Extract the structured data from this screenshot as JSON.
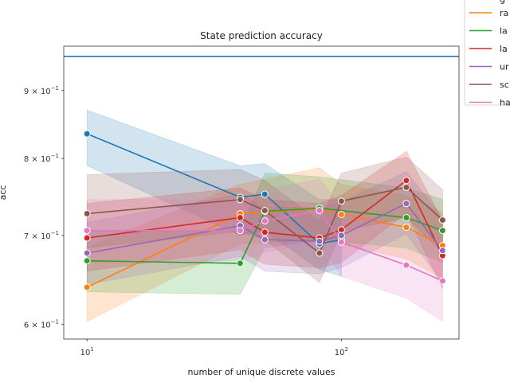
{
  "chart_data": {
    "type": "line",
    "title": "State prediction accuracy",
    "xlabel": "number of unique discrete values",
    "ylabel": "acc",
    "xscale": "log",
    "yscale": "log",
    "xlim": [
      8.1,
      290
    ],
    "ylim": [
      0.585,
      0.972
    ],
    "x_ticks": [
      {
        "value": 10,
        "base": "10",
        "exp": "1"
      },
      {
        "value": 100,
        "base": "10",
        "exp": "2"
      }
    ],
    "y_ticks": [
      {
        "value": 0.6,
        "mantissa": "6",
        "exp": "−1"
      },
      {
        "value": 0.7,
        "mantissa": "7",
        "exp": "−1"
      },
      {
        "value": 0.8,
        "mantissa": "8",
        "exp": "−1"
      },
      {
        "value": 0.9,
        "mantissa": "9",
        "exp": "−1"
      }
    ],
    "reference_line": {
      "y": 0.955,
      "color": "#1f77b4"
    },
    "grid": false,
    "legend_position": "right, partially cropped",
    "series": [
      {
        "name": "",
        "color": "#1f77b4",
        "x": [
          10,
          40,
          50,
          82,
          100
        ],
        "y": [
          0.835,
          0.748,
          0.752,
          0.69,
          0.695
        ],
        "lower": [
          0.79,
          0.7,
          0.705,
          0.66,
          0.652
        ],
        "upper": [
          0.87,
          0.79,
          0.793,
          0.745,
          0.745
        ]
      },
      {
        "name": "ra",
        "color": "#ff7f0e",
        "x": [
          10,
          40,
          82,
          100,
          180,
          250
        ],
        "y": [
          0.64,
          0.727,
          0.733,
          0.726,
          0.71,
          0.688
        ],
        "lower": [
          0.603,
          0.69,
          0.695,
          0.69,
          0.672,
          0.65
        ],
        "upper": [
          0.685,
          0.765,
          0.787,
          0.765,
          0.75,
          0.728
        ]
      },
      {
        "name": "la",
        "color": "#2ca02c",
        "x": [
          10,
          40,
          50,
          82,
          180,
          250
        ],
        "y": [
          0.67,
          0.667,
          0.73,
          0.734,
          0.722,
          0.706
        ],
        "lower": [
          0.635,
          0.632,
          0.685,
          0.695,
          0.685,
          0.668
        ],
        "upper": [
          0.705,
          0.705,
          0.78,
          0.775,
          0.76,
          0.745
        ]
      },
      {
        "name": "la",
        "color": "#d62728",
        "x": [
          10,
          40,
          50,
          82,
          100,
          180,
          250
        ],
        "y": [
          0.697,
          0.722,
          0.704,
          0.697,
          0.707,
          0.77,
          0.676
        ],
        "lower": [
          0.658,
          0.683,
          0.666,
          0.662,
          0.668,
          0.728,
          0.638
        ],
        "upper": [
          0.74,
          0.76,
          0.745,
          0.74,
          0.75,
          0.81,
          0.718
        ]
      },
      {
        "name": "ur",
        "color": "#9467bd",
        "x": [
          10,
          40,
          50,
          82,
          100,
          180,
          250
        ],
        "y": [
          0.679,
          0.712,
          0.695,
          0.693,
          0.7,
          0.74,
          0.682
        ],
        "lower": [
          0.643,
          0.675,
          0.658,
          0.655,
          0.662,
          0.702,
          0.645
        ],
        "upper": [
          0.716,
          0.752,
          0.735,
          0.735,
          0.742,
          0.782,
          0.722
        ]
      },
      {
        "name": "sc",
        "color": "#8c564b",
        "x": [
          10,
          40,
          50,
          82,
          100,
          180,
          250
        ],
        "y": [
          0.727,
          0.745,
          0.731,
          0.679,
          0.743,
          0.761,
          0.719
        ],
        "lower": [
          0.685,
          0.705,
          0.695,
          0.645,
          0.705,
          0.722,
          0.68
        ],
        "upper": [
          0.778,
          0.785,
          0.77,
          0.718,
          0.78,
          0.802,
          0.758
        ]
      },
      {
        "name": "ha",
        "color": "#e377c2",
        "x": [
          10,
          40,
          50,
          82,
          100,
          180,
          250
        ],
        "y": [
          0.706,
          0.706,
          0.718,
          0.731,
          0.692,
          0.665,
          0.647
        ],
        "lower": [
          0.668,
          0.67,
          0.68,
          0.692,
          0.652,
          0.628,
          0.603
        ],
        "upper": [
          0.745,
          0.745,
          0.757,
          0.772,
          0.735,
          0.706,
          0.69
        ]
      }
    ]
  }
}
